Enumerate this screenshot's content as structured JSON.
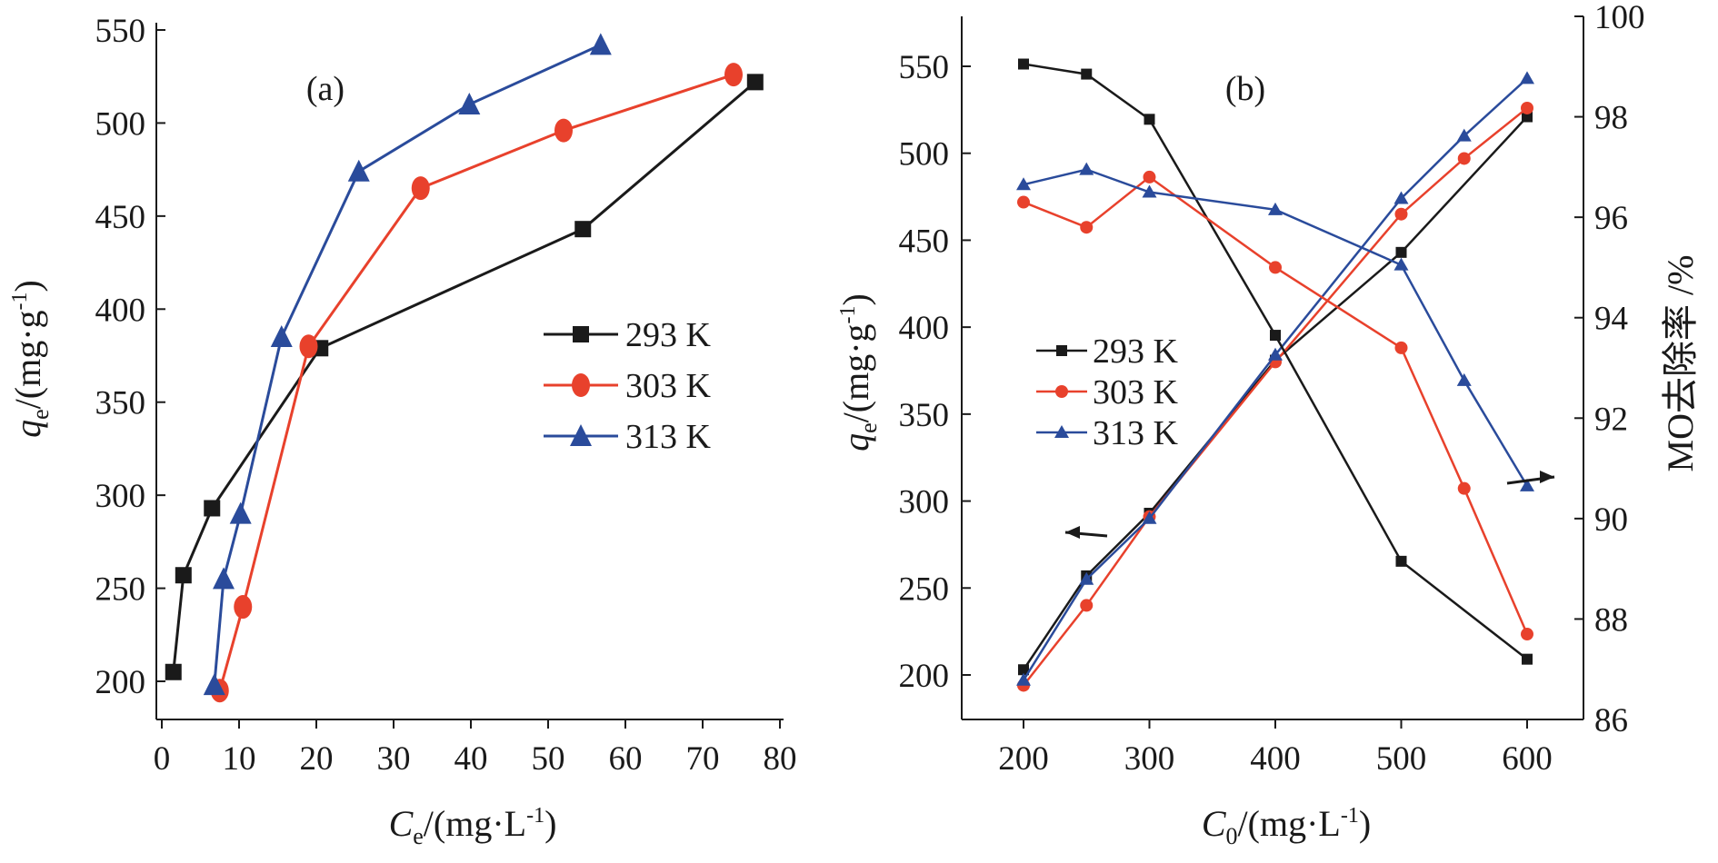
{
  "chart_data": [
    {
      "type": "line",
      "panel_label": "(a)",
      "xlabel": "Ce/(mg·L-1)",
      "xlabel_parts": {
        "main": "C",
        "sub": "e",
        "unit": "/(mg·L",
        "sup": "-1",
        "close": ")"
      },
      "ylabel": "qe/(mg·g-1)",
      "ylabel_parts": {
        "main": "q",
        "sub": "e",
        "unit": "/(mg·g",
        "sup": "-1",
        "close": ")"
      },
      "xlim": [
        0,
        80
      ],
      "ylim": [
        180,
        555
      ],
      "xticks": [
        "0",
        "10",
        "20",
        "30",
        "40",
        "50",
        "60",
        "70",
        "80"
      ],
      "yticks": [
        "200",
        "250",
        "300",
        "350",
        "400",
        "450",
        "500",
        "550"
      ],
      "legend_position": "center-right",
      "series": [
        {
          "name": "293 K",
          "color": "#1a1a1a",
          "marker": "square",
          "x": [
            1.5,
            2.8,
            6.5,
            20.5,
            54.5,
            76.8
          ],
          "y": [
            205,
            257,
            293,
            379,
            443,
            522
          ]
        },
        {
          "name": "303 K",
          "color": "#e8412c",
          "marker": "circle",
          "x": [
            7.5,
            10.5,
            19.0,
            33.5,
            52.0,
            74.0
          ],
          "y": [
            195,
            240,
            380,
            465,
            496,
            526
          ]
        },
        {
          "name": "313 K",
          "color": "#2a4b9b",
          "marker": "triangle",
          "x": [
            6.8,
            8.0,
            10.2,
            15.5,
            25.5,
            39.8,
            56.8
          ],
          "y": [
            198,
            255,
            290,
            385,
            474,
            510,
            542
          ]
        }
      ]
    },
    {
      "type": "line",
      "panel_label": "(b)",
      "xlabel": "C0/(mg·L-1)",
      "xlabel_parts": {
        "main": "C",
        "sub": "0",
        "unit": "/(mg·L",
        "sup": "-1",
        "close": ")"
      },
      "ylabel": "qe/(mg·g-1)",
      "ylabel_parts": {
        "main": "q",
        "sub": "e",
        "unit": "/(mg·g",
        "sup": "-1",
        "close": ")"
      },
      "y2label": "MO去除率 /%",
      "xlim": [
        150,
        650
      ],
      "ylim": [
        175,
        575
      ],
      "y2lim": [
        86,
        100
      ],
      "xticks": [
        "200",
        "300",
        "400",
        "500",
        "600"
      ],
      "yticks": [
        "200",
        "250",
        "300",
        "350",
        "400",
        "450",
        "500",
        "550"
      ],
      "y2ticks": [
        "86",
        "88",
        "90",
        "92",
        "94",
        "96",
        "98",
        "100"
      ],
      "legend_position": "center-left",
      "x": [
        200,
        250,
        300,
        400,
        500,
        550,
        600
      ],
      "series": [
        {
          "name": "293 K",
          "color": "#1a1a1a",
          "marker": "square",
          "axis": "left",
          "x": [
            200,
            250,
            300,
            400,
            500,
            600
          ],
          "y": [
            203,
            257,
            293,
            381,
            443,
            521
          ]
        },
        {
          "name": "303 K",
          "color": "#e8412c",
          "marker": "circle",
          "axis": "left",
          "x": [
            200,
            250,
            300,
            400,
            500,
            550,
            600
          ],
          "y": [
            194,
            240,
            291,
            380,
            465,
            497,
            526
          ]
        },
        {
          "name": "313 K",
          "color": "#2a4b9b",
          "marker": "triangle",
          "axis": "left",
          "x": [
            200,
            250,
            300,
            400,
            500,
            550,
            600
          ],
          "y": [
            197,
            255,
            290,
            384,
            474,
            510,
            543
          ]
        },
        {
          "name": "293 K",
          "color": "#1a1a1a",
          "marker": "square",
          "axis": "right",
          "x": [
            200,
            250,
            300,
            400,
            500,
            600
          ],
          "y": [
            99.05,
            98.85,
            97.95,
            93.65,
            89.15,
            87.2
          ]
        },
        {
          "name": "303 K",
          "color": "#e8412c",
          "marker": "circle",
          "axis": "right",
          "x": [
            200,
            250,
            300,
            400,
            500,
            550,
            600
          ],
          "y": [
            96.3,
            95.8,
            96.8,
            95.0,
            93.4,
            90.6,
            87.7
          ]
        },
        {
          "name": "313 K",
          "color": "#2a4b9b",
          "marker": "triangle",
          "axis": "right",
          "x": [
            200,
            250,
            300,
            400,
            500,
            550,
            600
          ],
          "y": [
            96.65,
            96.95,
            96.5,
            96.15,
            95.05,
            92.75,
            90.65
          ]
        }
      ],
      "annotations": [
        {
          "type": "arrow",
          "direction": "left",
          "meaning": "left axis"
        },
        {
          "type": "arrow",
          "direction": "right",
          "meaning": "right axis"
        }
      ]
    }
  ]
}
